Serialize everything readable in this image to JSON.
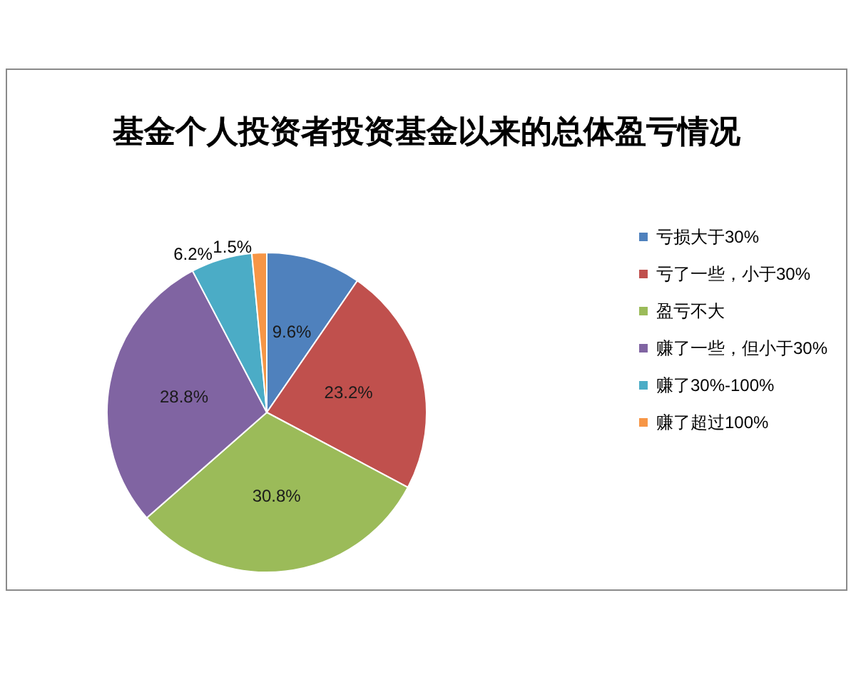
{
  "chart_data": {
    "type": "pie",
    "title": "基金个人投资者投资基金以来的总体盈亏情况",
    "categories": [
      "亏损大于30%",
      "亏了一些，小于30%",
      "盈亏不大",
      "赚了一些，但小于30%",
      "赚了30%-100%",
      "赚了超过100%"
    ],
    "values": [
      9.6,
      23.2,
      30.8,
      28.8,
      6.2,
      1.5
    ],
    "value_labels": [
      "9.6%",
      "23.2%",
      "30.8%",
      "28.8%",
      "6.2%",
      "1.5%"
    ],
    "colors": [
      "#4f81bd",
      "#c0504d",
      "#9bbb59",
      "#8064a2",
      "#4bacc6",
      "#f79646"
    ],
    "legend": "right"
  }
}
